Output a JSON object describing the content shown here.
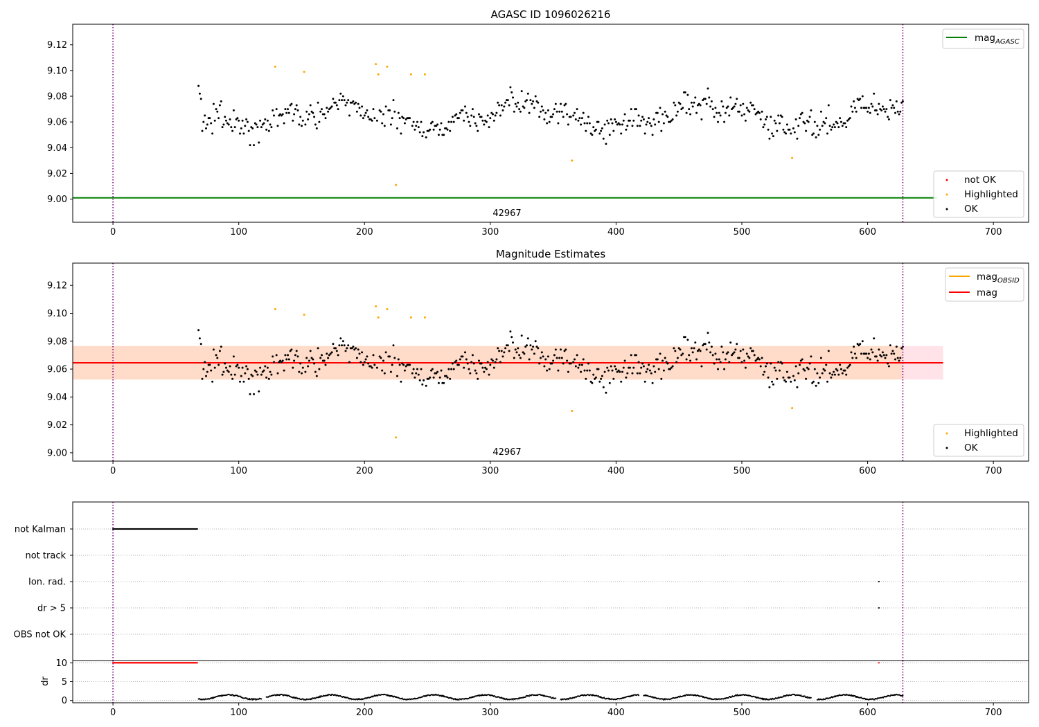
{
  "colors": {
    "ok": "#000000",
    "highlighted": "#ffa500",
    "not_ok": "#ff0000",
    "agasc_mag_line": "#008000",
    "mean_mag_line": "#ff0000",
    "obsid_mag_line": "#ffa500",
    "obs_window": "#800080",
    "band_outer": "#ffc0cb",
    "band_inner": "#ffd9c0",
    "grid": "#b0b0b0"
  },
  "chart_data": [
    {
      "id": "agasc",
      "type": "scatter",
      "title": "AGASC ID 1096026216",
      "xlim": [
        -32,
        728
      ],
      "ylim": [
        8.982,
        9.136
      ],
      "xticks": [
        0,
        100,
        200,
        300,
        400,
        500,
        600,
        700
      ],
      "yticks": [
        9.0,
        9.02,
        9.04,
        9.06,
        9.08,
        9.1,
        9.12
      ],
      "yticklabels": [
        "9.00",
        "9.02",
        "9.04",
        "9.06",
        "9.08",
        "9.10",
        "9.12"
      ],
      "vlines": [
        0,
        628
      ],
      "hline": {
        "y": 9.001,
        "x_from": -32,
        "x_to": 655,
        "name": "mag_AGASC"
      },
      "obsid_label": {
        "text": "42967",
        "x": 314
      },
      "legend_lines": [
        {
          "base": "mag",
          "sub": "AGASC",
          "color": "#008000"
        }
      ],
      "legend_points": [
        {
          "label": "not OK",
          "color": "#ff0000"
        },
        {
          "label": "Highlighted",
          "color": "#ffa500"
        },
        {
          "label": "OK",
          "color": "#000000"
        }
      ],
      "highlighted": {
        "x": [
          129,
          152,
          209,
          211,
          218,
          225,
          237,
          248,
          365,
          540
        ],
        "y": [
          9.103,
          9.099,
          9.105,
          9.097,
          9.103,
          9.011,
          9.097,
          9.097,
          9.03,
          9.032
        ]
      },
      "ok_series": "mag_ok"
    },
    {
      "id": "estimates",
      "type": "scatter",
      "title": "Magnitude Estimates",
      "xlim": [
        -32,
        728
      ],
      "ylim": [
        8.994,
        9.136
      ],
      "xticks": [
        0,
        100,
        200,
        300,
        400,
        500,
        600,
        700
      ],
      "yticks": [
        9.0,
        9.02,
        9.04,
        9.06,
        9.08,
        9.1,
        9.12
      ],
      "yticklabels": [
        "9.00",
        "9.02",
        "9.04",
        "9.06",
        "9.08",
        "9.10",
        "9.12"
      ],
      "vlines": [
        0,
        628
      ],
      "mean_mag": 9.0645,
      "band_outer": [
        9.0525,
        9.0765
      ],
      "band_inner": [
        9.0525,
        9.0765
      ],
      "band_outer_x": [
        -32,
        660
      ],
      "band_inner_x": [
        -32,
        628
      ],
      "obsid_label": {
        "text": "42967",
        "x": 314
      },
      "legend_lines": [
        {
          "base": "mag",
          "sub": "OBSID",
          "color": "#ffa500"
        },
        {
          "base": "mag",
          "sub": "",
          "color": "#ff0000"
        }
      ],
      "legend_points": [
        {
          "label": "Highlighted",
          "color": "#ffa500"
        },
        {
          "label": "OK",
          "color": "#000000"
        }
      ],
      "highlighted": {
        "x": [
          129,
          152,
          209,
          211,
          218,
          225,
          237,
          248,
          365,
          540
        ],
        "y": [
          9.103,
          9.099,
          9.105,
          9.097,
          9.103,
          9.011,
          9.097,
          9.097,
          9.03,
          9.032
        ]
      },
      "ok_series": "mag_ok"
    },
    {
      "id": "flags",
      "type": "scatter",
      "xlim": [
        -32,
        728
      ],
      "categories": [
        "not Kalman",
        "not track",
        "Ion. rad.",
        "dr > 5",
        "OBS not OK"
      ],
      "vlines": [
        0,
        628
      ],
      "flag_points": [
        {
          "category": "not Kalman",
          "x_range": [
            0,
            67
          ],
          "step": 0.5
        },
        {
          "category": "Ion. rad.",
          "x": [
            609
          ]
        },
        {
          "category": "dr > 5",
          "x": [
            609
          ]
        }
      ]
    },
    {
      "id": "dr",
      "type": "line",
      "ylabel": "dr",
      "xlim": [
        -32,
        728
      ],
      "ylim": [
        -0.6,
        10.6
      ],
      "xticks": [
        0,
        100,
        200,
        300,
        400,
        500,
        600,
        700
      ],
      "yticks": [
        0,
        5,
        10
      ],
      "yticklabels": [
        "0",
        "5",
        "10"
      ],
      "vlines": [
        0,
        628
      ],
      "clipped": [
        {
          "x_range": [
            0,
            67
          ],
          "y": 10
        },
        {
          "x": [
            609
          ],
          "y": 10
        }
      ],
      "dr_range": [
        68,
        628
      ]
    }
  ]
}
